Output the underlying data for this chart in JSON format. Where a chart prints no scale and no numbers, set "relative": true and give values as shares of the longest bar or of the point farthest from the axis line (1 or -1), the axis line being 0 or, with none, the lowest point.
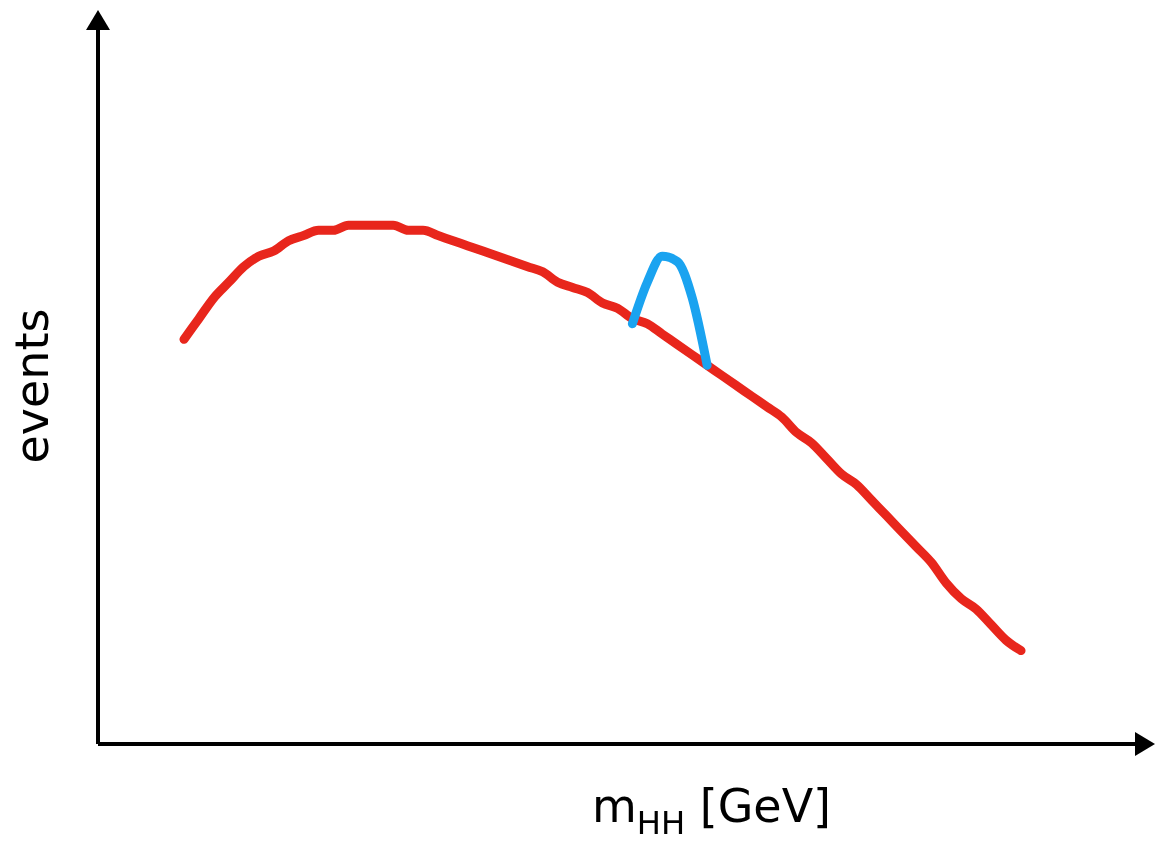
{
  "chart_data": {
    "type": "line",
    "relative": true,
    "xlabel": "m$_{HH}$ [GeV]",
    "ylabel": "events",
    "grid": false,
    "legend": false,
    "marker": "none",
    "line_style": "solid",
    "categories": [
      null,
      null,
      null,
      null,
      null,
      null,
      null,
      null,
      null,
      null,
      null,
      null,
      null,
      null,
      null,
      null,
      null,
      null,
      null,
      null,
      null,
      null,
      null,
      null,
      null,
      null,
      null,
      null,
      null,
      null,
      null,
      null,
      null,
      null,
      null,
      null,
      null,
      null,
      null,
      null,
      null,
      null,
      null,
      null,
      null,
      null,
      null,
      null,
      null,
      null,
      null,
      null,
      null,
      null,
      null,
      null,
      null
    ],
    "series": [
      {
        "color": "#e8261c",
        "values": [
          0.78,
          0.82,
          0.86,
          0.89,
          0.92,
          0.94,
          0.95,
          0.97,
          0.98,
          0.99,
          0.99,
          1.0,
          1.0,
          1.0,
          1.0,
          0.99,
          0.99,
          0.98,
          0.97,
          0.96,
          0.95,
          0.94,
          0.93,
          0.92,
          0.91,
          0.89,
          0.88,
          0.87,
          0.85,
          0.84,
          0.82,
          0.81,
          0.79,
          0.77,
          0.75,
          0.73,
          0.71,
          0.69,
          0.67,
          0.65,
          0.63,
          0.6,
          0.58,
          0.55,
          0.52,
          0.5,
          0.47,
          0.44,
          0.41,
          0.38,
          0.35,
          0.31,
          0.28,
          0.26,
          0.23,
          0.2,
          0.18
        ]
      },
      {
        "color": "#1aa3f0",
        "values": [
          null,
          null,
          null,
          null,
          null,
          null,
          null,
          null,
          null,
          null,
          null,
          null,
          null,
          null,
          null,
          null,
          null,
          null,
          null,
          null,
          null,
          null,
          null,
          null,
          null,
          null,
          null,
          null,
          null,
          null,
          0.81,
          0.89,
          0.94,
          0.93,
          0.86,
          0.73,
          null,
          null,
          null,
          null,
          null,
          null,
          null,
          null,
          null,
          null,
          null,
          null,
          null,
          null,
          null,
          null,
          null,
          null,
          null,
          null,
          null
        ]
      }
    ]
  }
}
